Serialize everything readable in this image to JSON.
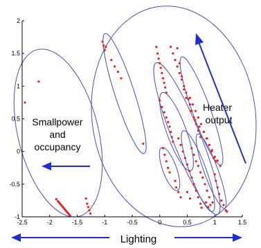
{
  "chart_data": {
    "type": "scatter",
    "title": "",
    "xlabel": "Lighting",
    "ylabel": "",
    "xlim": [
      -2.5,
      1.5
    ],
    "ylim": [
      -1,
      2
    ],
    "grid": false,
    "x_ticks": [
      -2.5,
      -2,
      -1.5,
      -1,
      -0.5,
      0,
      0.5,
      1,
      1.5
    ],
    "x_tick_labels": [
      "-2.5",
      "-2",
      "-1.5",
      "-1",
      "-0.5",
      "0",
      "0.5",
      "1",
      "1.5"
    ],
    "y_ticks": [
      -1,
      -0.5,
      0,
      0.5,
      1,
      1.5,
      2
    ],
    "y_tick_labels": [
      "-1",
      "-0.5",
      "0",
      "0.5",
      "1",
      "1.5",
      "2"
    ],
    "annotations": [
      {
        "id": "smallpower",
        "lines": [
          "Smallpower",
          "and",
          "occupancy"
        ]
      },
      {
        "id": "heater",
        "lines": [
          "Heater",
          "output"
        ]
      }
    ],
    "marker_color": "#e8201e",
    "ellipse_color": "#4a4fb8",
    "arrow_color": "#1e2fd0",
    "series": [
      {
        "color": "#e8201e",
        "points": [
          [
            -2.45,
            0.75
          ],
          [
            -2.2,
            1.07
          ],
          [
            -1.88,
            -0.73
          ],
          [
            -1.85,
            -0.76
          ],
          [
            -1.83,
            -0.78
          ],
          [
            -1.81,
            -0.8
          ],
          [
            -1.79,
            -0.82
          ],
          [
            -1.77,
            -0.84
          ],
          [
            -1.75,
            -0.86
          ],
          [
            -1.73,
            -0.88
          ],
          [
            -1.71,
            -0.9
          ],
          [
            -1.69,
            -0.92
          ],
          [
            -1.67,
            -0.94
          ],
          [
            -1.65,
            -0.96
          ],
          [
            -1.63,
            -0.98
          ],
          [
            -1.34,
            -0.72
          ],
          [
            -1.32,
            -0.8
          ],
          [
            -1.3,
            -0.85
          ],
          [
            -1.28,
            -0.9
          ],
          [
            -1.26,
            -0.95
          ],
          [
            -1.04,
            1.68
          ],
          [
            -1.02,
            1.62
          ],
          [
            -1.0,
            1.55
          ],
          [
            -0.98,
            1.6
          ],
          [
            -0.88,
            1.4
          ],
          [
            -0.82,
            1.3
          ],
          [
            -0.76,
            1.22
          ],
          [
            -0.7,
            1.12
          ],
          [
            -0.3,
            0.12
          ],
          [
            -0.06,
            1.6
          ],
          [
            -0.04,
            1.5
          ],
          [
            -0.02,
            1.42
          ],
          [
            0.0,
            1.35
          ],
          [
            0.02,
            1.28
          ],
          [
            0.04,
            1.2
          ],
          [
            0.06,
            1.12
          ],
          [
            0.08,
            1.05
          ],
          [
            0.1,
            0.98
          ],
          [
            0.12,
            0.9
          ],
          [
            0.0,
            0.78
          ],
          [
            0.04,
            0.68
          ],
          [
            0.08,
            0.6
          ],
          [
            0.12,
            0.52
          ],
          [
            0.15,
            0.45
          ],
          [
            0.18,
            0.38
          ],
          [
            0.2,
            0.3
          ],
          [
            0.22,
            0.22
          ],
          [
            0.24,
            0.15
          ],
          [
            0.06,
            0.05
          ],
          [
            0.09,
            -0.05
          ],
          [
            0.12,
            -0.15
          ],
          [
            0.15,
            -0.25
          ],
          [
            0.18,
            -0.32
          ],
          [
            0.2,
            1.6
          ],
          [
            0.24,
            1.5
          ],
          [
            0.28,
            1.4
          ],
          [
            0.32,
            1.3
          ],
          [
            0.36,
            1.2
          ],
          [
            0.4,
            1.1
          ],
          [
            0.44,
            1.0
          ],
          [
            0.48,
            0.9
          ],
          [
            0.52,
            0.8
          ],
          [
            0.55,
            0.72
          ],
          [
            0.58,
            0.62
          ],
          [
            0.62,
            0.52
          ],
          [
            0.66,
            0.42
          ],
          [
            0.7,
            0.32
          ],
          [
            0.74,
            0.22
          ],
          [
            0.34,
            0.2
          ],
          [
            0.38,
            0.1
          ],
          [
            0.42,
            0.0
          ],
          [
            0.46,
            -0.1
          ],
          [
            0.5,
            -0.2
          ],
          [
            0.54,
            -0.3
          ],
          [
            0.58,
            -0.4
          ],
          [
            0.62,
            -0.5
          ],
          [
            0.66,
            -0.6
          ],
          [
            0.7,
            -0.7
          ],
          [
            0.74,
            -0.8
          ],
          [
            0.76,
            -0.86
          ],
          [
            0.5,
            -0.62
          ],
          [
            0.55,
            -0.72
          ],
          [
            0.32,
            1.58
          ],
          [
            0.36,
            1.35
          ],
          [
            0.4,
            1.15
          ],
          [
            0.44,
            0.95
          ],
          [
            0.48,
            0.82
          ],
          [
            0.56,
            0.62
          ],
          [
            0.64,
            0.48
          ],
          [
            0.72,
            0.38
          ],
          [
            0.8,
            0.3
          ],
          [
            0.86,
            0.2
          ],
          [
            0.9,
            0.1
          ],
          [
            0.94,
            0.0
          ],
          [
            0.98,
            -0.1
          ],
          [
            1.02,
            -0.15
          ],
          [
            0.55,
            0.82
          ],
          [
            0.6,
            0.72
          ],
          [
            0.65,
            0.62
          ],
          [
            0.7,
            0.52
          ],
          [
            0.75,
            0.42
          ],
          [
            0.8,
            0.3
          ],
          [
            0.85,
            0.2
          ],
          [
            0.9,
            0.1
          ],
          [
            0.95,
            0.02
          ],
          [
            1.0,
            -0.08
          ],
          [
            1.05,
            -0.14
          ],
          [
            1.1,
            -0.22
          ],
          [
            0.58,
            0.05
          ],
          [
            0.62,
            -0.05
          ],
          [
            0.66,
            -0.15
          ],
          [
            0.7,
            -0.22
          ],
          [
            0.74,
            -0.32
          ],
          [
            0.78,
            -0.4
          ],
          [
            0.82,
            -0.5
          ],
          [
            0.86,
            -0.6
          ],
          [
            0.9,
            -0.7
          ],
          [
            0.84,
            -0.78
          ],
          [
            0.88,
            -0.85
          ],
          [
            0.92,
            -0.82
          ],
          [
            0.96,
            -0.78
          ],
          [
            1.0,
            -0.35
          ],
          [
            1.02,
            -0.45
          ],
          [
            1.05,
            -0.55
          ],
          [
            1.08,
            -0.65
          ],
          [
            1.12,
            -0.75
          ],
          [
            1.16,
            -0.82
          ],
          [
            1.2,
            -0.9
          ],
          [
            1.22,
            -0.92
          ],
          [
            0.28,
            -0.45
          ],
          [
            0.3,
            -0.55
          ],
          [
            0.34,
            -0.62
          ],
          [
            0.38,
            -0.7
          ]
        ]
      }
    ]
  }
}
